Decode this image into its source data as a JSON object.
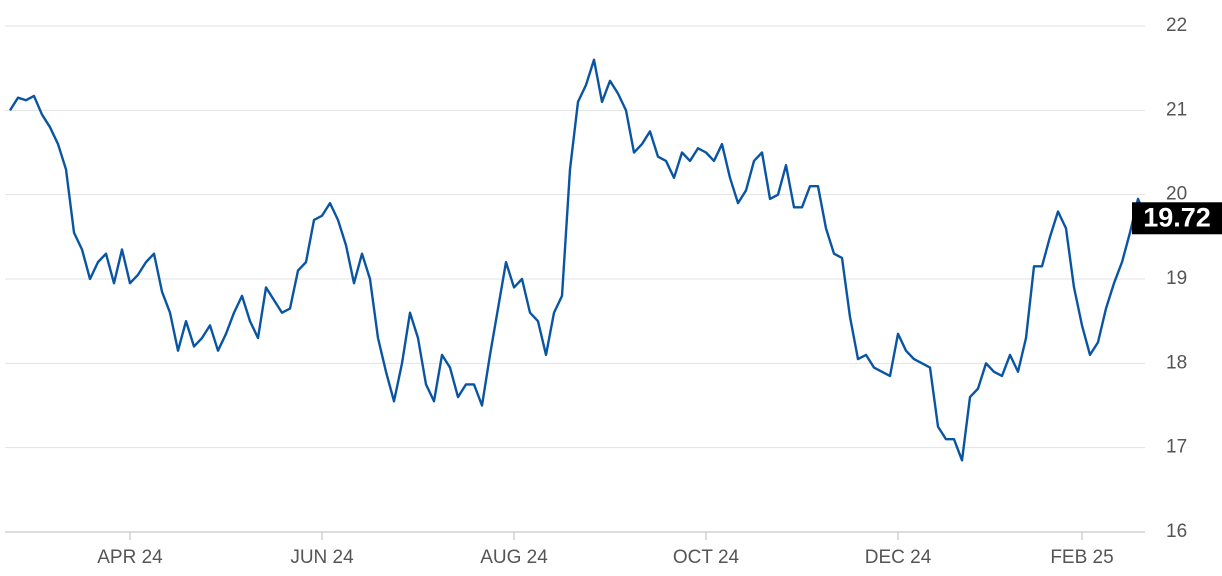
{
  "chart_data": {
    "type": "line",
    "categories": [
      null,
      null,
      null,
      null,
      null,
      null,
      null,
      null,
      null,
      null,
      null,
      null,
      null,
      null,
      null,
      "APR 24",
      null,
      null,
      null,
      null,
      null,
      null,
      null,
      null,
      null,
      null,
      null,
      null,
      null,
      null,
      null,
      null,
      null,
      null,
      null,
      null,
      null,
      null,
      null,
      "JUN 24",
      null,
      null,
      null,
      null,
      null,
      null,
      null,
      null,
      null,
      null,
      null,
      null,
      null,
      null,
      null,
      null,
      null,
      null,
      null,
      null,
      null,
      null,
      null,
      "AUG 24",
      null,
      null,
      null,
      null,
      null,
      null,
      null,
      null,
      null,
      null,
      null,
      null,
      null,
      null,
      null,
      null,
      null,
      null,
      null,
      null,
      null,
      null,
      null,
      "OCT 24",
      null,
      null,
      null,
      null,
      null,
      null,
      null,
      null,
      null,
      null,
      null,
      null,
      null,
      null,
      null,
      null,
      null,
      null,
      null,
      null,
      null,
      null,
      null,
      "DEC 24",
      null,
      null,
      null,
      null,
      null,
      null,
      null,
      null,
      null,
      null,
      null,
      null,
      null,
      null,
      null,
      null,
      null,
      null,
      null,
      null,
      null,
      null,
      "FEB 25",
      null,
      null,
      null,
      null,
      null,
      null,
      null,
      null
    ],
    "values": [
      21.0,
      21.15,
      21.12,
      21.17,
      20.95,
      20.8,
      20.6,
      20.3,
      19.55,
      19.35,
      19.0,
      19.2,
      19.3,
      18.95,
      19.35,
      18.95,
      19.05,
      19.2,
      19.3,
      18.85,
      18.6,
      18.15,
      18.5,
      18.2,
      18.3,
      18.45,
      18.15,
      18.35,
      18.6,
      18.8,
      18.5,
      18.3,
      18.9,
      18.75,
      18.6,
      18.65,
      19.1,
      19.2,
      19.7,
      19.75,
      19.9,
      19.7,
      19.4,
      18.95,
      19.3,
      19.0,
      18.3,
      17.9,
      17.55,
      18.0,
      18.6,
      18.3,
      17.75,
      17.55,
      18.1,
      17.95,
      17.6,
      17.75,
      17.75,
      17.5,
      18.1,
      18.65,
      19.2,
      18.9,
      19.0,
      18.6,
      18.5,
      18.1,
      18.6,
      18.8,
      20.3,
      21.1,
      21.3,
      21.6,
      21.1,
      21.35,
      21.2,
      21.0,
      20.5,
      20.6,
      20.75,
      20.45,
      20.4,
      20.2,
      20.5,
      20.4,
      20.55,
      20.5,
      20.4,
      20.6,
      20.2,
      19.9,
      20.05,
      20.4,
      20.5,
      19.95,
      20.0,
      20.35,
      19.85,
      19.85,
      20.1,
      20.1,
      19.6,
      19.3,
      19.25,
      18.55,
      18.05,
      18.1,
      17.95,
      17.9,
      17.85,
      18.35,
      18.15,
      18.05,
      18.0,
      17.95,
      17.25,
      17.1,
      17.1,
      16.85,
      17.6,
      17.7,
      18.0,
      17.9,
      17.85,
      18.1,
      17.9,
      18.3,
      19.15,
      19.15,
      19.5,
      19.8,
      19.6,
      18.9,
      18.45,
      18.1,
      18.25,
      18.65,
      18.95,
      19.2,
      19.55,
      19.95,
      19.72
    ],
    "color": "#0a55a3",
    "ylim": [
      16,
      22
    ],
    "yticks": [
      16,
      17,
      18,
      19,
      20,
      21,
      22
    ],
    "grid": true
  }
}
